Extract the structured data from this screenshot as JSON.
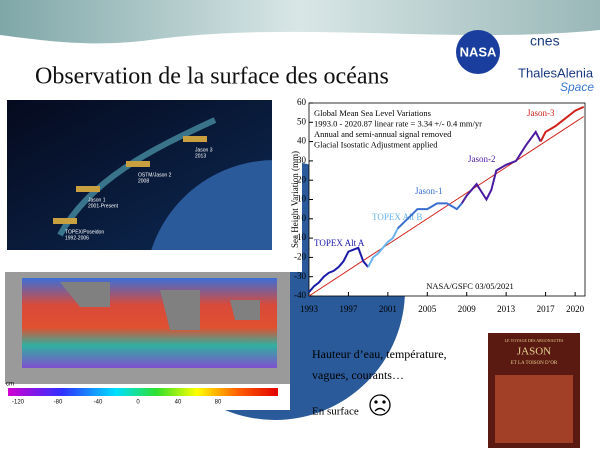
{
  "title": "Observation de la surface des océans",
  "logos": {
    "nasa": "NASA",
    "cnes": "cnes",
    "thales": "ThalesAlenia",
    "space": "Space"
  },
  "satellites": [
    {
      "name": "Jason 3",
      "years": "2013"
    },
    {
      "name": "OSTM/Jason 2",
      "years": "2008"
    },
    {
      "name": "Jason 1",
      "years": "2001-Present"
    },
    {
      "name": "TOPEX/Poseidon",
      "years": "1992-2006"
    }
  ],
  "colorbar": {
    "label": "cm",
    "ticks": [
      -120,
      -80,
      -40,
      0,
      40,
      80
    ]
  },
  "text": {
    "line1": "Hauteur d’eau, température,",
    "line2": "vagues, courants…",
    "line3": "En surface"
  },
  "book": {
    "top": "LE VOYAGE DES ARGONAUTES",
    "name": "JASON",
    "sub": "ET LA TOISON D’OR"
  },
  "chart_data": {
    "type": "line",
    "title": [
      "Global Mean Sea Level Variations",
      "1993.0 - 2020.87 linear rate = 3.34 +/- 0.4 mm/yr",
      "Annual and semi-annual signal removed",
      "Glacial Isostatic Adjustment applied"
    ],
    "ylabel": "Sea Height Variation (mm)",
    "credit": "NASA/GSFC  03/05/2021",
    "xlim": [
      1993,
      2021
    ],
    "ylim": [
      -40,
      60
    ],
    "xticks": [
      1993,
      1997,
      2001,
      2005,
      2009,
      2013,
      2017,
      2020
    ],
    "yticks": [
      -40,
      -30,
      -20,
      -10,
      0,
      10,
      20,
      30,
      40,
      50,
      60
    ],
    "series": [
      {
        "name": "TOPEX Alt A",
        "color": "#1a1aa8",
        "x": [
          1993,
          1993.5,
          1994,
          1994.5,
          1995,
          1995.5,
          1996,
          1996.5,
          1997,
          1997.5,
          1998,
          1998.5,
          1999
        ],
        "values": [
          -38,
          -35,
          -33,
          -30,
          -28,
          -27,
          -25,
          -22,
          -17,
          -16,
          -15,
          -22,
          -25
        ]
      },
      {
        "name": "TOPEX Alt B",
        "color": "#6ab4ec",
        "x": [
          1999,
          1999.5,
          2000,
          2000.5,
          2001,
          2001.5,
          2002
        ],
        "values": [
          -25,
          -20,
          -18,
          -15,
          -12,
          -10,
          -5
        ]
      },
      {
        "name": "Jason-1",
        "color": "#3a6fd0",
        "x": [
          2002,
          2003,
          2004,
          2005,
          2006,
          2007,
          2008,
          2008.5
        ],
        "values": [
          -5,
          0,
          5,
          5,
          8,
          8,
          5,
          8
        ]
      },
      {
        "name": "Jason-2",
        "color": "#4a1aa0",
        "x": [
          2008.5,
          2009,
          2010,
          2011,
          2011.5,
          2012,
          2013,
          2014,
          2015,
          2016,
          2016.5
        ],
        "values": [
          8,
          12,
          18,
          10,
          15,
          25,
          28,
          30,
          38,
          45,
          40
        ]
      },
      {
        "name": "Jason-3",
        "color": "#d0201a",
        "x": [
          2016.5,
          2017,
          2018,
          2019,
          2020,
          2020.87
        ],
        "values": [
          40,
          45,
          48,
          52,
          56,
          58
        ]
      }
    ],
    "trend": {
      "color": "#d0201a",
      "x": [
        1993,
        2020.87
      ],
      "values": [
        -40,
        53
      ]
    }
  }
}
